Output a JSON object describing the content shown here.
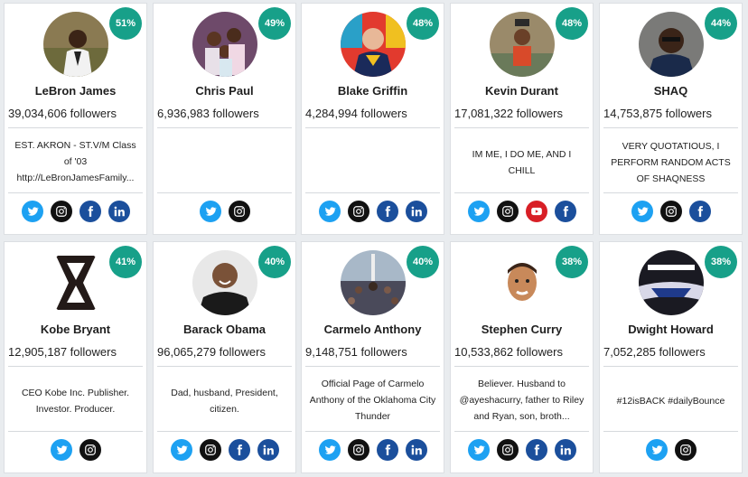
{
  "colors": {
    "badge": "#17a089",
    "twitter": "#1da1f2",
    "facebook": "#1b4f9c",
    "linkedin": "#1b4f9c",
    "youtube": "#d81f26",
    "instagram": "#111111"
  },
  "cards": [
    {
      "name": "LeBron James",
      "badge": "51%",
      "followers": "39,034,606 followers",
      "bio": "EST. AKRON - ST.V/M Class of '03 http://LeBronJamesFamily...",
      "socials": [
        "twitter",
        "instagram",
        "facebook",
        "linkedin"
      ]
    },
    {
      "name": "Chris Paul",
      "badge": "49%",
      "followers": "6,936,983 followers",
      "bio": "",
      "socials": [
        "twitter",
        "instagram"
      ]
    },
    {
      "name": "Blake Griffin",
      "badge": "48%",
      "followers": "4,284,994 followers",
      "bio": "",
      "socials": [
        "twitter",
        "instagram",
        "facebook",
        "linkedin"
      ]
    },
    {
      "name": "Kevin Durant",
      "badge": "48%",
      "followers": "17,081,322 followers",
      "bio": "IM ME, I DO ME, AND I CHILL",
      "socials": [
        "twitter",
        "instagram",
        "youtube",
        "facebook"
      ]
    },
    {
      "name": "SHAQ",
      "badge": "44%",
      "followers": "14,753,875 followers",
      "bio": "VERY QUOTATIOUS, I PERFORM RANDOM ACTS OF SHAQNESS",
      "socials": [
        "twitter",
        "instagram",
        "facebook"
      ]
    },
    {
      "name": "Kobe Bryant",
      "badge": "41%",
      "followers": "12,905,187 followers",
      "bio": "CEO Kobe Inc. Publisher. Investor. Producer.",
      "socials": [
        "twitter",
        "instagram"
      ]
    },
    {
      "name": "Barack Obama",
      "badge": "40%",
      "followers": "96,065,279 followers",
      "bio": "Dad, husband, President, citizen.",
      "socials": [
        "twitter",
        "instagram",
        "facebook",
        "linkedin"
      ]
    },
    {
      "name": "Carmelo Anthony",
      "badge": "40%",
      "followers": "9,148,751 followers",
      "bio": "Official Page of Carmelo Anthony of the Oklahoma City Thunder",
      "socials": [
        "twitter",
        "instagram",
        "facebook",
        "linkedin"
      ]
    },
    {
      "name": "Stephen Curry",
      "badge": "38%",
      "followers": "10,533,862 followers",
      "bio": "Believer. Husband to @ayeshacurry, father to Riley and Ryan, son, broth...",
      "socials": [
        "twitter",
        "instagram",
        "facebook",
        "linkedin"
      ]
    },
    {
      "name": "Dwight Howard",
      "badge": "38%",
      "followers": "7,052,285 followers",
      "bio": "#12isBACK #dailyBounce",
      "socials": [
        "twitter",
        "instagram"
      ]
    }
  ]
}
